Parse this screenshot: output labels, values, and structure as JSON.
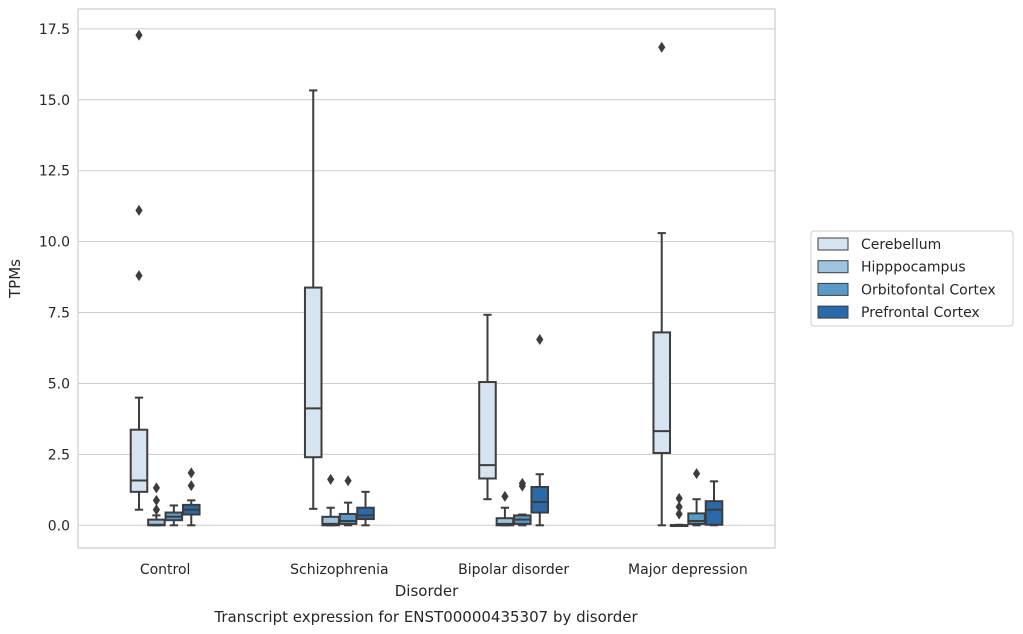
{
  "caption": "Transcript expression for ENST00000435307 by disorder",
  "chart_data": {
    "type": "box",
    "title": "",
    "xlabel": "Disorder",
    "ylabel": "TPMs",
    "ylim": [
      -0.8,
      18.2
    ],
    "yticks": [
      0.0,
      2.5,
      5.0,
      7.5,
      10.0,
      12.5,
      15.0,
      17.5
    ],
    "ytick_labels": [
      "0.0",
      "2.5",
      "5.0",
      "7.5",
      "10.0",
      "12.5",
      "15.0",
      "17.5"
    ],
    "grid": "horizontal",
    "legend_position": "right",
    "categories": [
      "Control",
      "Schizophrenia",
      "Bipolar disorder",
      "Major depression"
    ],
    "series": [
      {
        "name": "Cerebellum",
        "color": "#d6e4f2",
        "boxes": [
          {
            "whislo": 0.55,
            "q1": 1.18,
            "med": 1.58,
            "q3": 3.37,
            "whishi": 4.5,
            "fliers": [
              8.8,
              11.1,
              17.28
            ]
          },
          {
            "whislo": 0.58,
            "q1": 2.4,
            "med": 4.12,
            "q3": 8.38,
            "whishi": 15.33,
            "fliers": []
          },
          {
            "whislo": 0.92,
            "q1": 1.65,
            "med": 2.12,
            "q3": 5.05,
            "whishi": 7.42,
            "fliers": []
          },
          {
            "whislo": 0.0,
            "q1": 2.55,
            "med": 3.32,
            "q3": 6.8,
            "whishi": 10.3,
            "fliers": [
              16.85
            ]
          }
        ]
      },
      {
        "name": "Hipppocampus",
        "color": "#9fc4df",
        "boxes": [
          {
            "whislo": 0.0,
            "q1": 0.0,
            "med": 0.02,
            "q3": 0.2,
            "whishi": 0.35,
            "fliers": [
              0.55,
              0.88,
              1.32
            ]
          },
          {
            "whislo": 0.0,
            "q1": 0.0,
            "med": 0.05,
            "q3": 0.3,
            "whishi": 0.62,
            "fliers": [
              1.62
            ]
          },
          {
            "whislo": 0.0,
            "q1": 0.0,
            "med": 0.05,
            "q3": 0.25,
            "whishi": 0.62,
            "fliers": [
              1.02
            ]
          },
          {
            "whislo": 0.0,
            "q1": 0.0,
            "med": 0.0,
            "q3": 0.01,
            "whishi": 0.02,
            "fliers": [
              0.4,
              0.65,
              0.95
            ]
          }
        ]
      },
      {
        "name": "Orbitofontal Cortex",
        "color": "#5a9ac8",
        "boxes": [
          {
            "whislo": 0.0,
            "q1": 0.18,
            "med": 0.3,
            "q3": 0.45,
            "whishi": 0.7,
            "fliers": []
          },
          {
            "whislo": 0.0,
            "q1": 0.05,
            "med": 0.15,
            "q3": 0.4,
            "whishi": 0.8,
            "fliers": [
              1.57
            ]
          },
          {
            "whislo": 0.0,
            "q1": 0.05,
            "med": 0.2,
            "q3": 0.35,
            "whishi": 0.38,
            "fliers": [
              1.38,
              1.48
            ]
          },
          {
            "whislo": 0.0,
            "q1": 0.05,
            "med": 0.15,
            "q3": 0.42,
            "whishi": 0.92,
            "fliers": [
              1.82
            ]
          }
        ]
      },
      {
        "name": "Prefrontal Cortex",
        "color": "#2a6aaa",
        "boxes": [
          {
            "whislo": 0.0,
            "q1": 0.38,
            "med": 0.55,
            "q3": 0.72,
            "whishi": 0.88,
            "fliers": [
              1.4,
              1.85
            ]
          },
          {
            "whislo": 0.0,
            "q1": 0.22,
            "med": 0.35,
            "q3": 0.62,
            "whishi": 1.18,
            "fliers": []
          },
          {
            "whislo": 0.0,
            "q1": 0.45,
            "med": 0.82,
            "q3": 1.35,
            "whishi": 1.8,
            "fliers": [
              6.55
            ]
          },
          {
            "whislo": 0.0,
            "q1": 0.02,
            "med": 0.55,
            "q3": 0.85,
            "whishi": 1.55,
            "fliers": []
          }
        ]
      }
    ]
  }
}
